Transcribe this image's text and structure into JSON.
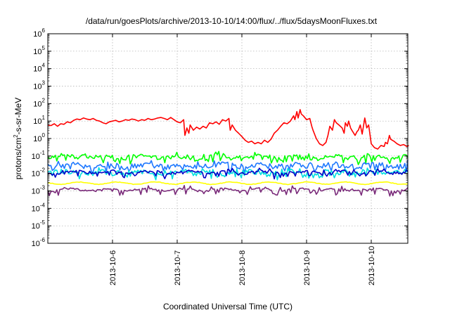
{
  "chart_data": {
    "type": "line",
    "title": "/data/run/goesPlots/archive/2013-10-10/14:00/flux/../flux/5daysMoonFluxes.txt",
    "xlabel": "Coordinated Universal Time (UTC)",
    "ylabel": {
      "base": "protons/cm",
      "sup": "2",
      "rest": "-s-sr-MeV"
    },
    "yscale": "log",
    "ylim": [
      1e-06,
      1000000.0
    ],
    "xlim": [
      "2013-10-05 00:00",
      "2013-10-10 14:00"
    ],
    "x_ticks": [
      "2013-10-6",
      "2013-10-7",
      "2013-10-8",
      "2013-10-9",
      "2013-10-10"
    ],
    "y_ticks": [
      {
        "base": "10",
        "exp": "6"
      },
      {
        "base": "10",
        "exp": "5"
      },
      {
        "base": "10",
        "exp": "4"
      },
      {
        "base": "10",
        "exp": "3"
      },
      {
        "base": "10",
        "exp": "2"
      },
      {
        "base": "10",
        "exp": "1"
      },
      {
        "base": "10",
        "exp": "0"
      },
      {
        "base": "10",
        "exp": "-1"
      },
      {
        "base": "10",
        "exp": "-2"
      },
      {
        "base": "10",
        "exp": "-3"
      },
      {
        "base": "10",
        "exp": "-4"
      },
      {
        "base": "10",
        "exp": "-5"
      },
      {
        "base": "10",
        "exp": "-6"
      }
    ],
    "grid": true,
    "colors": {
      "red": "#ff0000",
      "green": "#00ff00",
      "blue": "#1e78ff",
      "cyan": "#00e0e0",
      "navy": "#0000c8",
      "yellow": "#ffff00",
      "purple": "#7a2a7a"
    },
    "series": [
      {
        "color": "red",
        "points": [
          [
            0.0,
            6
          ],
          [
            0.05,
            5.5
          ],
          [
            0.1,
            7
          ],
          [
            0.15,
            5
          ],
          [
            0.2,
            7
          ],
          [
            0.25,
            6.5
          ],
          [
            0.3,
            9
          ],
          [
            0.35,
            8
          ],
          [
            0.4,
            11
          ],
          [
            0.45,
            13
          ],
          [
            0.5,
            12
          ],
          [
            0.55,
            15
          ],
          [
            0.6,
            13
          ],
          [
            0.65,
            12
          ],
          [
            0.7,
            14
          ],
          [
            0.75,
            11
          ],
          [
            0.8,
            10
          ],
          [
            0.85,
            8
          ],
          [
            0.9,
            7
          ],
          [
            0.95,
            9
          ],
          [
            1.0,
            10
          ],
          [
            1.05,
            11
          ],
          [
            1.1,
            9
          ],
          [
            1.15,
            10
          ],
          [
            1.2,
            12
          ],
          [
            1.25,
            11
          ],
          [
            1.3,
            13
          ],
          [
            1.35,
            12
          ],
          [
            1.4,
            10
          ],
          [
            1.45,
            12
          ],
          [
            1.5,
            11
          ],
          [
            1.55,
            14
          ],
          [
            1.6,
            12
          ],
          [
            1.65,
            13
          ],
          [
            1.7,
            15
          ],
          [
            1.75,
            16
          ],
          [
            1.8,
            14
          ],
          [
            1.85,
            12
          ],
          [
            1.9,
            16
          ],
          [
            1.95,
            12
          ],
          [
            2.0,
            9
          ],
          [
            2.05,
            8
          ],
          [
            2.1,
            12
          ],
          [
            2.12,
            1.5
          ],
          [
            2.15,
            4
          ],
          [
            2.18,
            2
          ],
          [
            2.2,
            6
          ],
          [
            2.25,
            3
          ],
          [
            2.3,
            4.5
          ],
          [
            2.35,
            3.5
          ],
          [
            2.4,
            5
          ],
          [
            2.45,
            4
          ],
          [
            2.5,
            8
          ],
          [
            2.55,
            7
          ],
          [
            2.6,
            9
          ],
          [
            2.65,
            6.5
          ],
          [
            2.7,
            12
          ],
          [
            2.75,
            10
          ],
          [
            2.8,
            14
          ],
          [
            2.82,
            3
          ],
          [
            2.85,
            6
          ],
          [
            2.9,
            3
          ],
          [
            2.95,
            2
          ],
          [
            3.0,
            1.3
          ],
          [
            3.05,
            0.8
          ],
          [
            3.1,
            0.6
          ],
          [
            3.15,
            0.7
          ],
          [
            3.2,
            0.5
          ],
          [
            3.25,
            0.6
          ],
          [
            3.3,
            0.5
          ],
          [
            3.35,
            0.8
          ],
          [
            3.4,
            0.6
          ],
          [
            3.45,
            0.9
          ],
          [
            3.5,
            2
          ],
          [
            3.55,
            3
          ],
          [
            3.6,
            5
          ],
          [
            3.65,
            8
          ],
          [
            3.7,
            7
          ],
          [
            3.75,
            10
          ],
          [
            3.8,
            20
          ],
          [
            3.82,
            12
          ],
          [
            3.85,
            35
          ],
          [
            3.87,
            15
          ],
          [
            3.9,
            45
          ],
          [
            3.92,
            25
          ],
          [
            3.95,
            20
          ],
          [
            4.0,
            12
          ],
          [
            4.05,
            14
          ],
          [
            4.08,
            5
          ],
          [
            4.1,
            3
          ],
          [
            4.15,
            1
          ],
          [
            4.2,
            0.5
          ],
          [
            4.25,
            0.4
          ],
          [
            4.3,
            0.6
          ],
          [
            4.33,
            1.5
          ],
          [
            4.36,
            5
          ],
          [
            4.4,
            3
          ],
          [
            4.43,
            12
          ],
          [
            4.46,
            8
          ],
          [
            4.5,
            6
          ],
          [
            4.55,
            4
          ],
          [
            4.58,
            2
          ],
          [
            4.6,
            8
          ],
          [
            4.63,
            5
          ],
          [
            4.65,
            10
          ],
          [
            4.68,
            4
          ],
          [
            4.7,
            3
          ],
          [
            4.75,
            1.5
          ],
          [
            4.78,
            2.5
          ],
          [
            4.8,
            3
          ],
          [
            4.83,
            6
          ],
          [
            4.86,
            1.8
          ],
          [
            4.9,
            15
          ],
          [
            4.93,
            4
          ],
          [
            4.96,
            6
          ],
          [
            5.0,
            0.5
          ],
          [
            5.05,
            0.3
          ],
          [
            5.1,
            0.25
          ],
          [
            5.15,
            0.4
          ],
          [
            5.2,
            0.35
          ],
          [
            5.22,
            0.6
          ],
          [
            5.25,
            0.5
          ],
          [
            5.28,
            1.5
          ],
          [
            5.3,
            0.9
          ],
          [
            5.35,
            0.7
          ],
          [
            5.4,
            0.5
          ],
          [
            5.45,
            0.4
          ],
          [
            5.5,
            0.45
          ],
          [
            5.55,
            0.35
          ],
          [
            5.58,
            0.4
          ]
        ]
      },
      {
        "color": "green",
        "base": 0.09,
        "amp": 0.25,
        "spike": 0.06,
        "seed": 11
      },
      {
        "color": "blue",
        "base": 0.03,
        "amp": 0.35,
        "spike": 0.1,
        "seed": 23
      },
      {
        "color": "cyan",
        "base": 0.012,
        "amp": 0.3,
        "spike": 0.1,
        "seed": 37
      },
      {
        "color": "navy",
        "base": 0.012,
        "amp": 0.15,
        "spike": 0.03,
        "seed": 41
      },
      {
        "color": "yellow",
        "base": 0.0028,
        "amp": 0.04,
        "spike": 0.0,
        "seed": 53
      },
      {
        "color": "purple",
        "base": 0.0012,
        "amp": 0.08,
        "spike": 0.02,
        "seed": 67
      }
    ]
  }
}
